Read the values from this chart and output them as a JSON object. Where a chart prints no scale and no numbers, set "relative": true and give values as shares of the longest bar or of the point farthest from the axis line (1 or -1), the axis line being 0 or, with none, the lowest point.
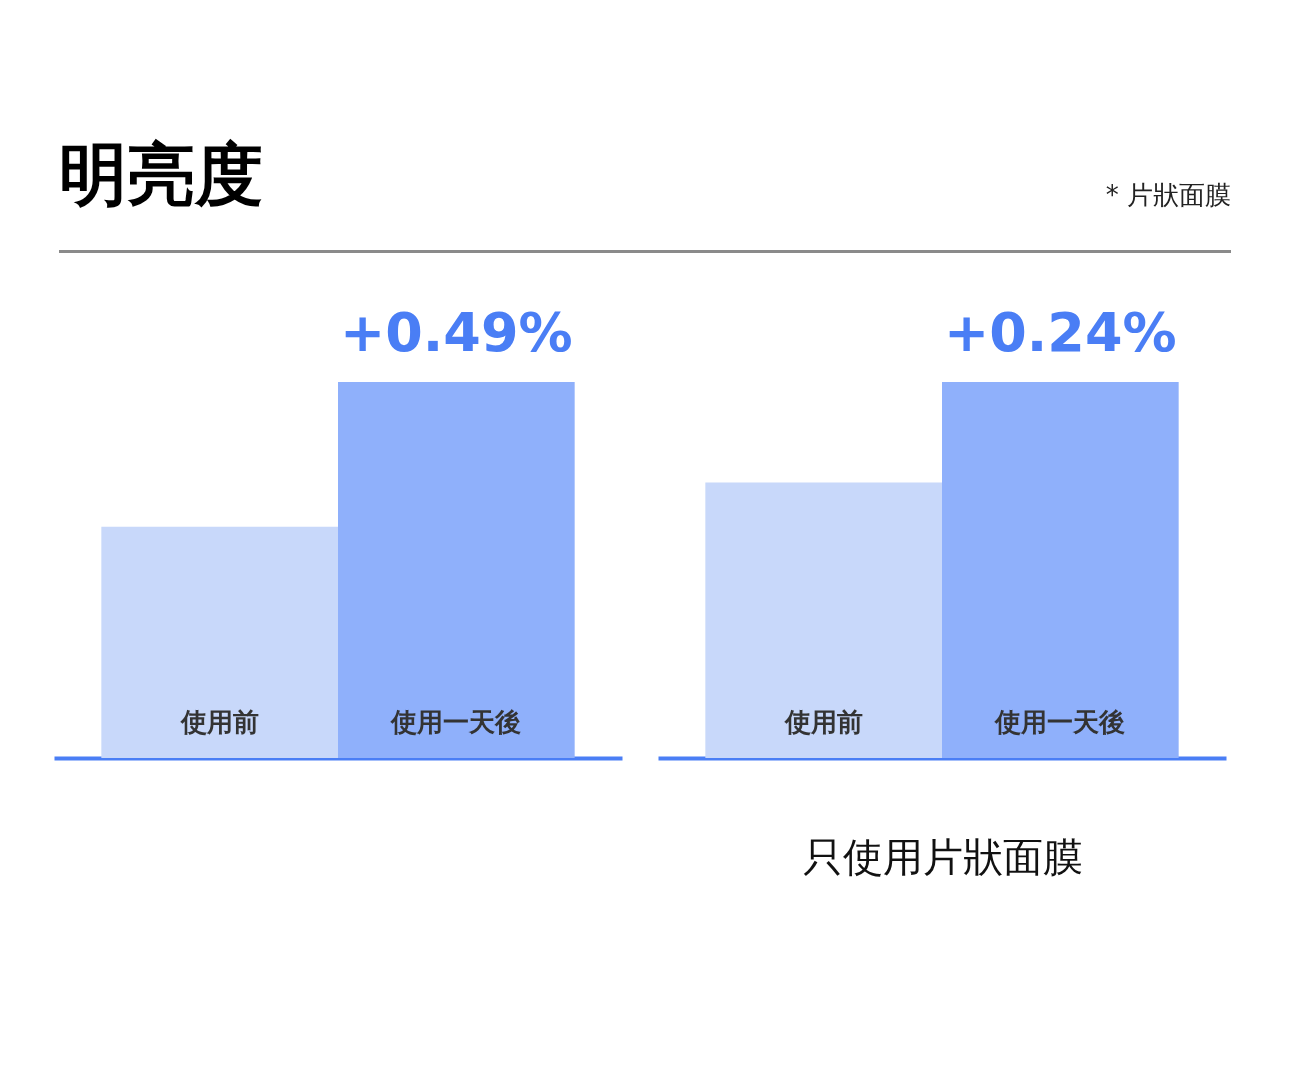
{
  "chart_data": [
    {
      "type": "bar",
      "title": "明亮度",
      "relative": true,
      "categories": [
        "使用前",
        "使用一天後"
      ],
      "values": [
        0.615,
        1
      ],
      "colors": [
        "#c8d8fa",
        "#8fb0fb"
      ],
      "annotations": [
        "* 片狀面膜",
        {
          "text": "+0.49%",
          "x": "使用一天後",
          "y": 1
        }
      ]
    },
    {
      "type": "bar",
      "xlabel": "只使用片狀面膜",
      "relative": true,
      "categories": [
        "使用前",
        "使用一天後"
      ],
      "values": [
        0.733,
        1
      ],
      "colors": [
        "#c8d8fa",
        "#8fb0fb"
      ],
      "annotations": [
        {
          "text": "+0.24%",
          "x": "使用一天後",
          "y": 1
        }
      ]
    }
  ]
}
